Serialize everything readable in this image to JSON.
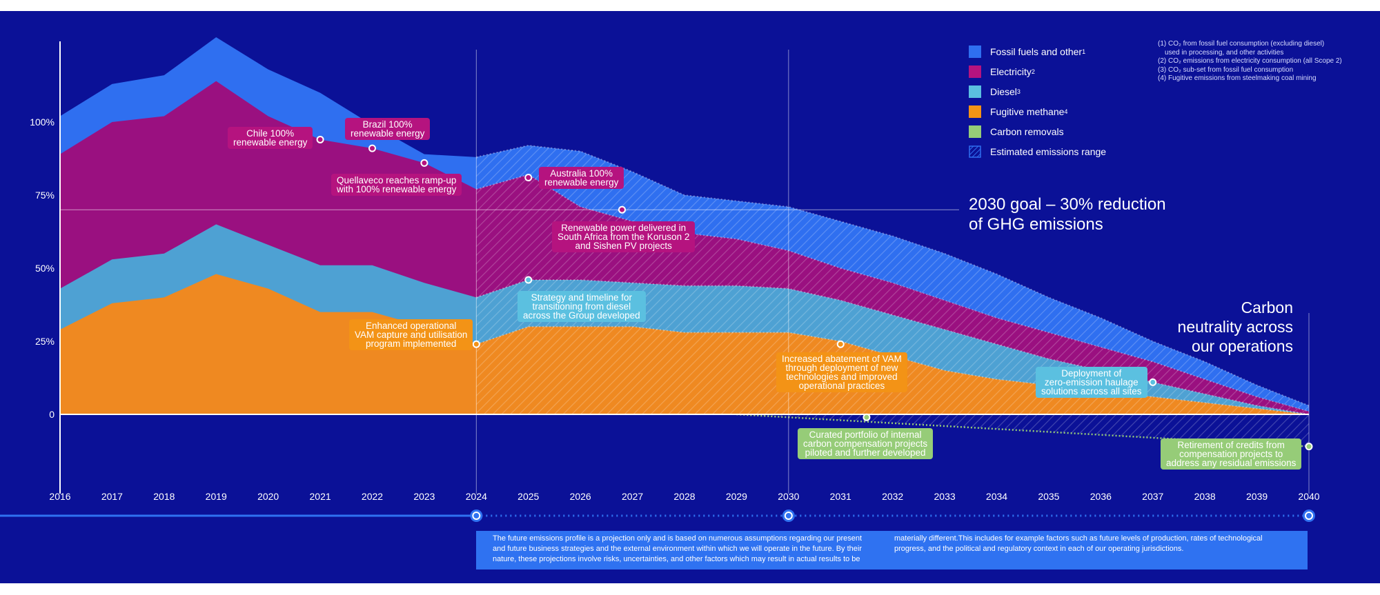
{
  "chart_data": {
    "type": "area",
    "x": [
      2016,
      2017,
      2018,
      2019,
      2020,
      2021,
      2022,
      2023,
      2024,
      2025,
      2026,
      2027,
      2028,
      2029,
      2030,
      2031,
      2032,
      2033,
      2034,
      2035,
      2036,
      2037,
      2038,
      2039,
      2040
    ],
    "xlim": [
      2016,
      2040
    ],
    "ylim": [
      -25,
      130
    ],
    "y_ticks": [
      {
        "value": 100,
        "label": "100%"
      },
      {
        "value": 75,
        "label": "75%"
      },
      {
        "value": 50,
        "label": "50%"
      },
      {
        "value": 25,
        "label": "25%"
      },
      {
        "value": 0,
        "label": "0"
      }
    ],
    "series": [
      {
        "name": "Fossil fuels and other",
        "sup": "1",
        "color": "#2f6ff0",
        "values": [
          102,
          113,
          116,
          129,
          118,
          110,
          99,
          89,
          88,
          92,
          90,
          83,
          75,
          73,
          71,
          66,
          61,
          55,
          48,
          40,
          33,
          25,
          18,
          10,
          3
        ]
      },
      {
        "name": "Electricity",
        "sup": "2",
        "color": "#9a1080",
        "values": [
          89,
          100,
          102,
          114,
          102,
          94,
          91,
          86,
          77,
          82,
          71,
          66,
          62,
          60,
          56,
          50,
          45,
          39,
          33,
          28,
          23,
          18,
          12,
          6,
          1
        ]
      },
      {
        "name": "Diesel",
        "sup": "3",
        "color": "#4ea1d3",
        "values": [
          43,
          53,
          55,
          65,
          58,
          51,
          51,
          45,
          40,
          46,
          46,
          45,
          44,
          44,
          43,
          39,
          34,
          29,
          24,
          19,
          15,
          11,
          7,
          3,
          0
        ]
      },
      {
        "name": "Fugitive methane",
        "sup": "4",
        "color": "#ef8921",
        "values": [
          29,
          38,
          40,
          48,
          43,
          35,
          35,
          30,
          24,
          30,
          30,
          30,
          28,
          28,
          28,
          25,
          20,
          15,
          12,
          10,
          8,
          6,
          4,
          2,
          0
        ]
      },
      {
        "name": "Carbon removals",
        "sup": "",
        "color": "#96cc78",
        "values": [
          null,
          null,
          null,
          null,
          null,
          null,
          null,
          null,
          null,
          null,
          null,
          null,
          null,
          0,
          -1,
          -2,
          -3,
          -4,
          -5,
          -6,
          -7,
          -8,
          -9,
          -10,
          -11
        ]
      }
    ],
    "estimated_range_from": 2024,
    "goal_line_value": 70,
    "vertical_markers": [
      2024,
      2030,
      2040
    ],
    "annotations": [
      {
        "text": "Chile 100%\nrenewable energy",
        "x": 2021,
        "y": 94,
        "style": "magenta"
      },
      {
        "text": "Brazil 100%\nrenewable energy",
        "x": 2022,
        "y": 91,
        "style": "magenta"
      },
      {
        "text": "Quellaveco reaches ramp-up\nwith 100% renewable energy",
        "x": 2023,
        "y": 86,
        "style": "magenta"
      },
      {
        "text": "Australia 100%\nrenewable energy",
        "x": 2025,
        "y": 81,
        "style": "magenta"
      },
      {
        "text": "Renewable power delivered in\nSouth Africa from the Koruson 2\nand Sishen PV projects",
        "x": 2026.8,
        "y": 70,
        "style": "magenta"
      },
      {
        "text": "Strategy and timeline for\ntransitioning from diesel\nacross the Group developed",
        "x": 2025,
        "y": 46,
        "style": "cyan"
      },
      {
        "text": "Enhanced operational\nVAM capture and utilisation\nprogram implemented",
        "x": 2024,
        "y": 24,
        "style": "orange"
      },
      {
        "text": "Increased abatement of VAM\nthrough deployment of new\ntechnologies and improved\noperational practices",
        "x": 2031,
        "y": 24,
        "style": "orange"
      },
      {
        "text": "Curated portfolio of internal\ncarbon compensation projects\npiloted and further developed",
        "x": 2031.5,
        "y": -1,
        "style": "green"
      },
      {
        "text": "Deployment of\nzero-emission haulage\nsolutions across all sites",
        "x": 2037,
        "y": 11,
        "style": "cyan"
      },
      {
        "text": "Retirement of credits from\ncompensation projects to\naddress any residual emissions",
        "x": 2040,
        "y": -11,
        "style": "green"
      }
    ],
    "legend": [
      {
        "label": "Fossil fuels and other",
        "sup": "1",
        "color": "#2f6ff0"
      },
      {
        "label": "Electricity",
        "sup": "2",
        "color": "#b5137f"
      },
      {
        "label": "Diesel",
        "sup": "3",
        "color": "#5bc0e0"
      },
      {
        "label": "Fugitive methane",
        "sup": "4",
        "color": "#f39316"
      },
      {
        "label": "Carbon removals",
        "sup": "",
        "color": "#96cc78"
      },
      {
        "label": "Estimated emissions range",
        "sup": "",
        "color": "hatched"
      }
    ],
    "legend_position": "top-right",
    "goal_text": "2030 goal – 30% reduction\nof GHG emissions",
    "neutrality_text": "Carbon\nneutrality across\nour operations"
  },
  "footnotes": [
    "(1) CO₂ from fossil fuel consumption (excluding diesel)",
    "used in processing, and other activities",
    "(2) CO₂ emissions from electricity consumption (all Scope 2)",
    "(3) CO₂ sub-set from fossil fuel consumption",
    "(4) Fugitive emissions from steelmaking coal mining"
  ],
  "disclaimer": {
    "left": "The future emissions profile is a projection only and is based on numerous assumptions regarding our present\nand future business strategies and the external environment within which we will operate in the future. By their\nnature, these projections involve risks, uncertainties, and other factors which may result in actual results to be",
    "right": "materially different.This includes for example factors such as future levels of production, rates of technological\nprogress, and the political and regulatory context in each of our operating jurisdictions."
  },
  "colors": {
    "background": "#0b1197",
    "timeline": "#2f72f1"
  }
}
